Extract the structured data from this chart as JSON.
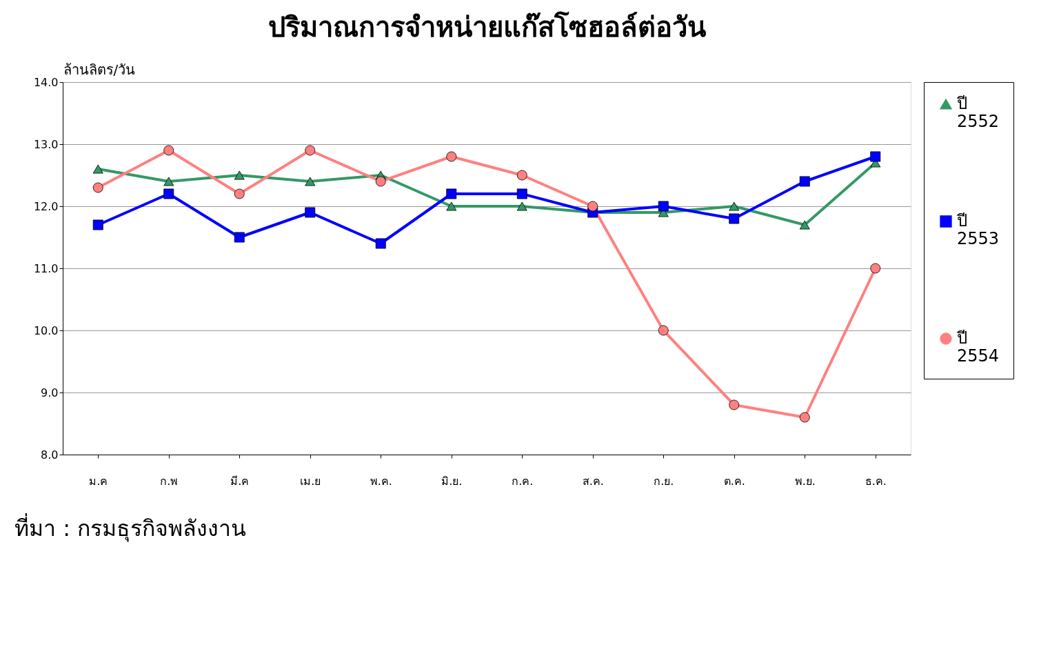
{
  "chart_data": {
    "type": "line",
    "title": "ปริมาณการจำหน่ายแก๊สโซฮอล์ต่อวัน",
    "ylabel": "ล้านลิตร/วัน",
    "categories": [
      "ม.ค",
      "ก.พ",
      "มี.ค",
      "เม.ย",
      "พ.ค.",
      "มิ.ย.",
      "ก.ค.",
      "ส.ค.",
      "ก.ย.",
      "ต.ค.",
      "พ.ย.",
      "ธ.ค."
    ],
    "series": [
      {
        "name": "ปี 2552",
        "color": "#339966",
        "marker": "triangle",
        "values": [
          12.6,
          12.4,
          12.5,
          12.4,
          12.5,
          12.0,
          12.0,
          11.9,
          11.9,
          12.0,
          11.7,
          12.7
        ]
      },
      {
        "name": "ปี 2553",
        "color": "#0000ff",
        "marker": "square",
        "values": [
          11.7,
          12.2,
          11.5,
          11.9,
          11.4,
          12.2,
          12.2,
          11.9,
          12.0,
          11.8,
          12.4,
          12.8
        ]
      },
      {
        "name": "ปี 2554",
        "color": "#ff8080",
        "marker": "circle",
        "values": [
          12.3,
          12.9,
          12.2,
          12.9,
          12.4,
          12.8,
          12.5,
          12.0,
          10.0,
          8.8,
          8.6,
          11.0
        ]
      }
    ],
    "ylim": [
      8,
      14
    ],
    "yticks": [
      {
        "value": 8,
        "label": "8.0"
      },
      {
        "value": 9,
        "label": "9.0"
      },
      {
        "value": 10,
        "label": "10.0"
      },
      {
        "value": 11,
        "label": "11.0"
      },
      {
        "value": 12,
        "label": "12.0"
      },
      {
        "value": 13,
        "label": "13.0"
      },
      {
        "value": 14,
        "label": "14.0"
      }
    ],
    "grid": "y",
    "legend": "right",
    "line_style": "solid",
    "annotations": [
      "ที่มา : กรมธุรกิจพลังงาน"
    ]
  }
}
